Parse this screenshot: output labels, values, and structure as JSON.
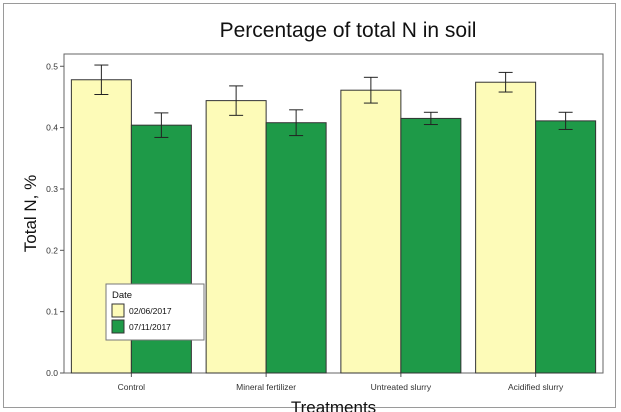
{
  "chart_data": {
    "type": "bar",
    "title": "Percentage of total N in soil",
    "xlabel": "Treatments",
    "ylabel": "Total N, %",
    "categories": [
      "Control",
      "Mineral fertilizer",
      "Untreated slurry",
      "Acidified slurry"
    ],
    "series": [
      {
        "name": "02/06/2017",
        "color": "#fdfbb8",
        "values": [
          0.478,
          0.444,
          0.461,
          0.474
        ],
        "error": [
          0.024,
          0.024,
          0.021,
          0.016
        ]
      },
      {
        "name": "07/11/2017",
        "color": "#1e9a48",
        "values": [
          0.404,
          0.408,
          0.415,
          0.411
        ],
        "error": [
          0.02,
          0.021,
          0.01,
          0.014
        ]
      }
    ],
    "ylim": [
      0,
      0.52
    ],
    "yticks": [
      "0.0",
      "0.1",
      "0.2",
      "0.3",
      "0.4",
      "0.5"
    ],
    "grid": false,
    "legend": {
      "title": "Date",
      "position": "bottom-left"
    }
  }
}
